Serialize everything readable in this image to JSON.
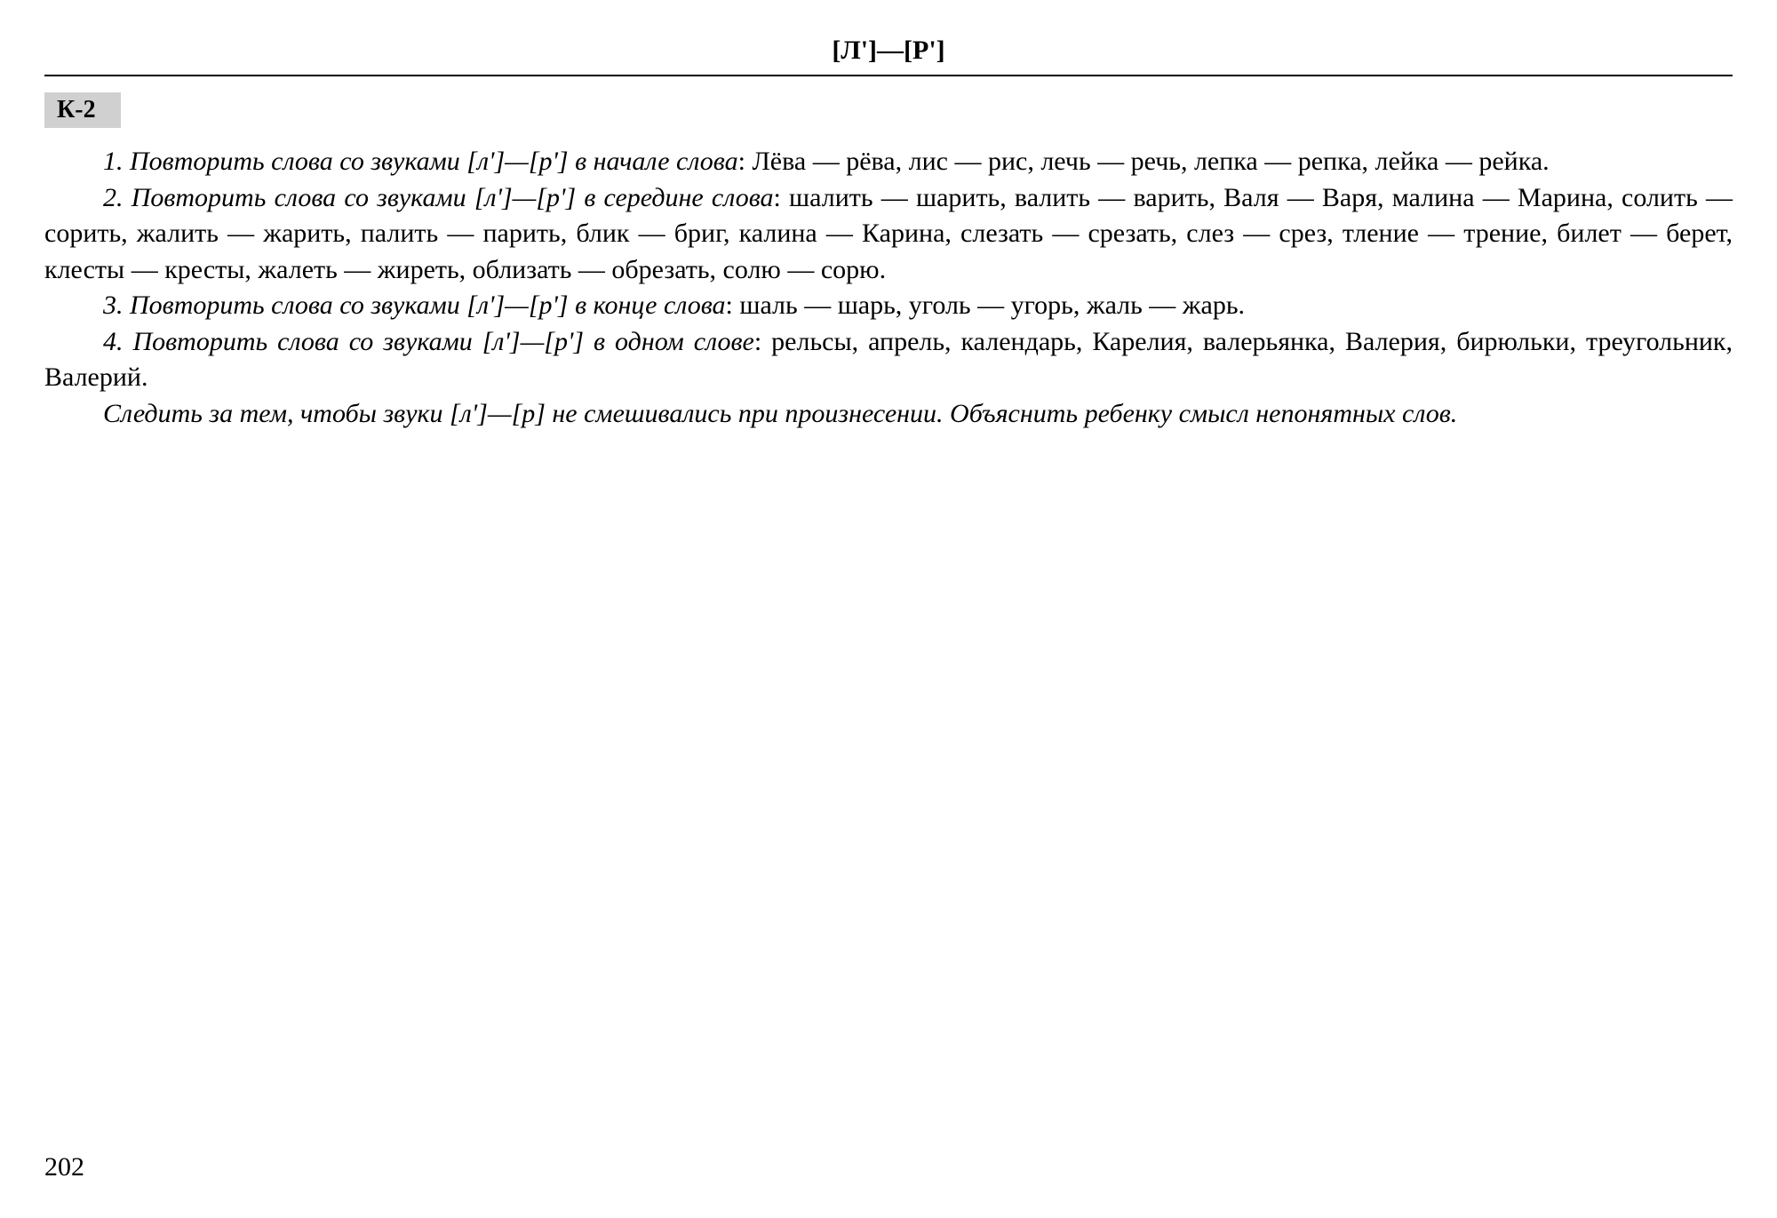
{
  "header": {
    "title": "[Л']—[Р']"
  },
  "section": {
    "label": "К-2"
  },
  "paragraphs": {
    "p1": {
      "lead": "1. Повторить слова со звуками [л']—[р'] в начале слова",
      "body": ": Лёва — рёва, лис — рис, лечь — речь, лепка — репка, лейка — рейка."
    },
    "p2": {
      "lead": "2. Повторить слова со звуками [л']—[р'] в середине слова",
      "body": ": шалить — шарить, валить — варить, Валя — Варя, малина — Марина, солить — сорить, жалить — жарить, палить — парить, блик — бриг, калина — Карина, слезать — срезать, слез — срез, тление — трение, билет — берет, клесты — кресты, жалеть — жиреть, облизать — обрезать, солю — сорю."
    },
    "p3": {
      "lead": "3. Повторить слова со звуками [л']—[р'] в конце слова",
      "body": ": шаль — шарь, уголь — угорь, жаль — жарь."
    },
    "p4": {
      "lead": "4. Повторить слова со звуками [л']—[р'] в одном слове",
      "body": ": рельсы, апрель, календарь, Карелия, валерьянка, Валерия, бирюльки, треугольник, Валерий."
    },
    "p5": {
      "full": "Следить за тем, чтобы звуки [л']—[р] не смешивались при произнесении. Объяснить ребенку смысл непонятных слов."
    }
  },
  "page_number": "202"
}
